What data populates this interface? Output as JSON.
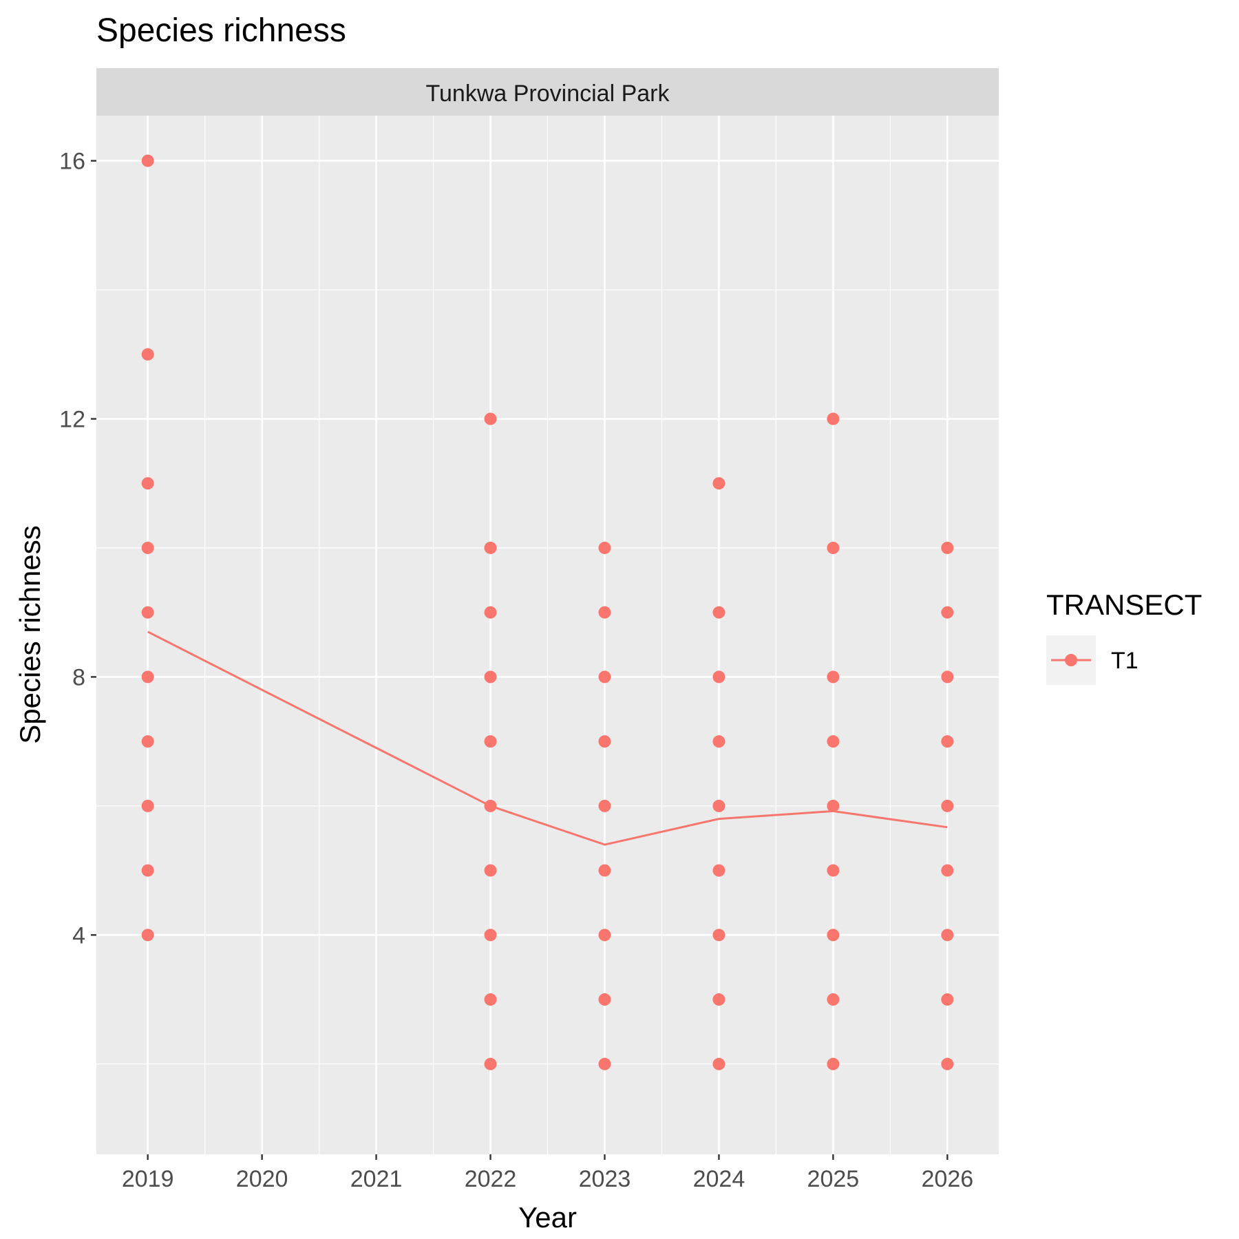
{
  "chart_data": {
    "type": "scatter",
    "title": "Species richness",
    "facet_label": "Tunkwa Provincial Park",
    "xlabel": "Year",
    "ylabel": "Species richness",
    "x_ticks": [
      "2019",
      "2020",
      "2021",
      "2022",
      "2023",
      "2024",
      "2025",
      "2026"
    ],
    "y_ticks": [
      "4",
      "8",
      "12",
      "16"
    ],
    "xlim": [
      2018.55,
      2026.45
    ],
    "ylim": [
      0.6,
      16.7
    ],
    "grid": true,
    "legend": {
      "title": "TRANSECT",
      "position": "right",
      "entries": [
        "T1"
      ]
    },
    "series": [
      {
        "name": "T1",
        "color": "#F8766D",
        "points": [
          {
            "x": 2019,
            "y": 16
          },
          {
            "x": 2019,
            "y": 13
          },
          {
            "x": 2019,
            "y": 11
          },
          {
            "x": 2019,
            "y": 10
          },
          {
            "x": 2019,
            "y": 9
          },
          {
            "x": 2019,
            "y": 8
          },
          {
            "x": 2019,
            "y": 7
          },
          {
            "x": 2019,
            "y": 6
          },
          {
            "x": 2019,
            "y": 5
          },
          {
            "x": 2019,
            "y": 4
          },
          {
            "x": 2022,
            "y": 12
          },
          {
            "x": 2022,
            "y": 10
          },
          {
            "x": 2022,
            "y": 9
          },
          {
            "x": 2022,
            "y": 8
          },
          {
            "x": 2022,
            "y": 7
          },
          {
            "x": 2022,
            "y": 6
          },
          {
            "x": 2022,
            "y": 5
          },
          {
            "x": 2022,
            "y": 4
          },
          {
            "x": 2022,
            "y": 3
          },
          {
            "x": 2022,
            "y": 2
          },
          {
            "x": 2023,
            "y": 10
          },
          {
            "x": 2023,
            "y": 9
          },
          {
            "x": 2023,
            "y": 8
          },
          {
            "x": 2023,
            "y": 7
          },
          {
            "x": 2023,
            "y": 6
          },
          {
            "x": 2023,
            "y": 5
          },
          {
            "x": 2023,
            "y": 4
          },
          {
            "x": 2023,
            "y": 3
          },
          {
            "x": 2023,
            "y": 2
          },
          {
            "x": 2024,
            "y": 11
          },
          {
            "x": 2024,
            "y": 9
          },
          {
            "x": 2024,
            "y": 8
          },
          {
            "x": 2024,
            "y": 7
          },
          {
            "x": 2024,
            "y": 6
          },
          {
            "x": 2024,
            "y": 5
          },
          {
            "x": 2024,
            "y": 4
          },
          {
            "x": 2024,
            "y": 3
          },
          {
            "x": 2024,
            "y": 2
          },
          {
            "x": 2025,
            "y": 12
          },
          {
            "x": 2025,
            "y": 10
          },
          {
            "x": 2025,
            "y": 8
          },
          {
            "x": 2025,
            "y": 7
          },
          {
            "x": 2025,
            "y": 6
          },
          {
            "x": 2025,
            "y": 5
          },
          {
            "x": 2025,
            "y": 4
          },
          {
            "x": 2025,
            "y": 3
          },
          {
            "x": 2025,
            "y": 2
          },
          {
            "x": 2026,
            "y": 10
          },
          {
            "x": 2026,
            "y": 9
          },
          {
            "x": 2026,
            "y": 8
          },
          {
            "x": 2026,
            "y": 7
          },
          {
            "x": 2026,
            "y": 6
          },
          {
            "x": 2026,
            "y": 5
          },
          {
            "x": 2026,
            "y": 4
          },
          {
            "x": 2026,
            "y": 3
          },
          {
            "x": 2026,
            "y": 2
          }
        ],
        "trend": [
          {
            "x": 2019,
            "y": 8.7
          },
          {
            "x": 2020,
            "y": 7.8
          },
          {
            "x": 2021,
            "y": 6.9
          },
          {
            "x": 2022,
            "y": 6.0
          },
          {
            "x": 2023,
            "y": 5.4
          },
          {
            "x": 2024,
            "y": 5.8
          },
          {
            "x": 2025,
            "y": 5.92
          },
          {
            "x": 2026,
            "y": 5.67
          }
        ]
      }
    ]
  }
}
